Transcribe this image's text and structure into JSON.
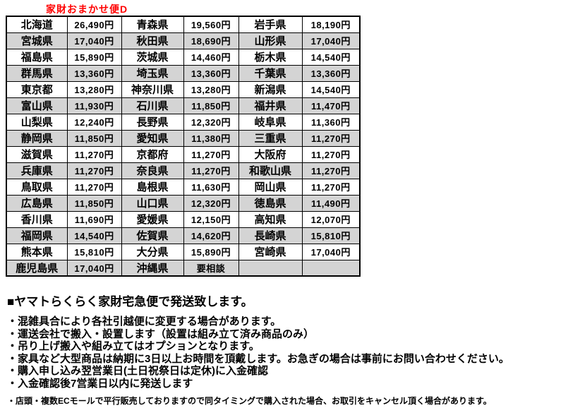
{
  "title": "家財おまかせ便D",
  "colors": {
    "title_red": "#ff0000",
    "row_alt_gray": "#d4d4d4",
    "border_black": "#000000"
  },
  "table": {
    "columns": [
      "prefecture",
      "price",
      "prefecture",
      "price",
      "prefecture",
      "price"
    ],
    "rows": [
      [
        "北海道",
        "26,490円",
        "青森県",
        "19,560円",
        "岩手県",
        "18,190円"
      ],
      [
        "宮城県",
        "17,040円",
        "秋田県",
        "18,690円",
        "山形県",
        "17,040円"
      ],
      [
        "福島県",
        "15,890円",
        "茨城県",
        "14,460円",
        "栃木県",
        "14,540円"
      ],
      [
        "群馬県",
        "13,360円",
        "埼玉県",
        "13,360円",
        "千葉県",
        "13,360円"
      ],
      [
        "東京都",
        "13,280円",
        "神奈川県",
        "13,280円",
        "新潟県",
        "14,540円"
      ],
      [
        "富山県",
        "11,930円",
        "石川県",
        "11,850円",
        "福井県",
        "11,470円"
      ],
      [
        "山梨県",
        "12,240円",
        "長野県",
        "12,320円",
        "岐阜県",
        "11,360円"
      ],
      [
        "静岡県",
        "11,850円",
        "愛知県",
        "11,380円",
        "三重県",
        "11,270円"
      ],
      [
        "滋賀県",
        "11,270円",
        "京都府",
        "11,270円",
        "大阪府",
        "11,270円"
      ],
      [
        "兵庫県",
        "11,270円",
        "奈良県",
        "11,270円",
        "和歌山県",
        "11,270円"
      ],
      [
        "鳥取県",
        "11,270円",
        "島根県",
        "11,630円",
        "岡山県",
        "11,270円"
      ],
      [
        "広島県",
        "11,850円",
        "山口県",
        "12,320円",
        "徳島県",
        "11,490円"
      ],
      [
        "香川県",
        "11,690円",
        "愛媛県",
        "12,150円",
        "高知県",
        "12,070円"
      ],
      [
        "福岡県",
        "14,540円",
        "佐賀県",
        "14,620円",
        "長崎県",
        "15,810円"
      ],
      [
        "熊本県",
        "15,810円",
        "大分県",
        "15,890円",
        "宮崎県",
        "17,040円"
      ],
      [
        "鹿児島県",
        "17,040円",
        "沖縄県",
        "要相談",
        "",
        ""
      ]
    ]
  },
  "notes": {
    "heading": "■ヤマトらくらく家財宅急便で発送致します。",
    "bullets": [
      "・混雑具合により各社引越便に変更する場合があります。",
      "・運送会社で搬入・設置します（設置は組み立て済み商品のみ）",
      "・吊り上げ搬入や組み立てはオプションとなります。",
      "・家具など大型商品は納期に3日以上お時間を頂戴します。お急ぎの場合は事前にお問い合わせください。",
      "・購入申し込み翌営業日(土日祝祭日は定休)に入金確認",
      "・入金確認後7営業日以内に発送します"
    ],
    "footnote": "・店頭・複数ECモールで平行販売しておりますので同タイミングで購入された場合、お取引をキャンセル頂く場合があります。"
  }
}
